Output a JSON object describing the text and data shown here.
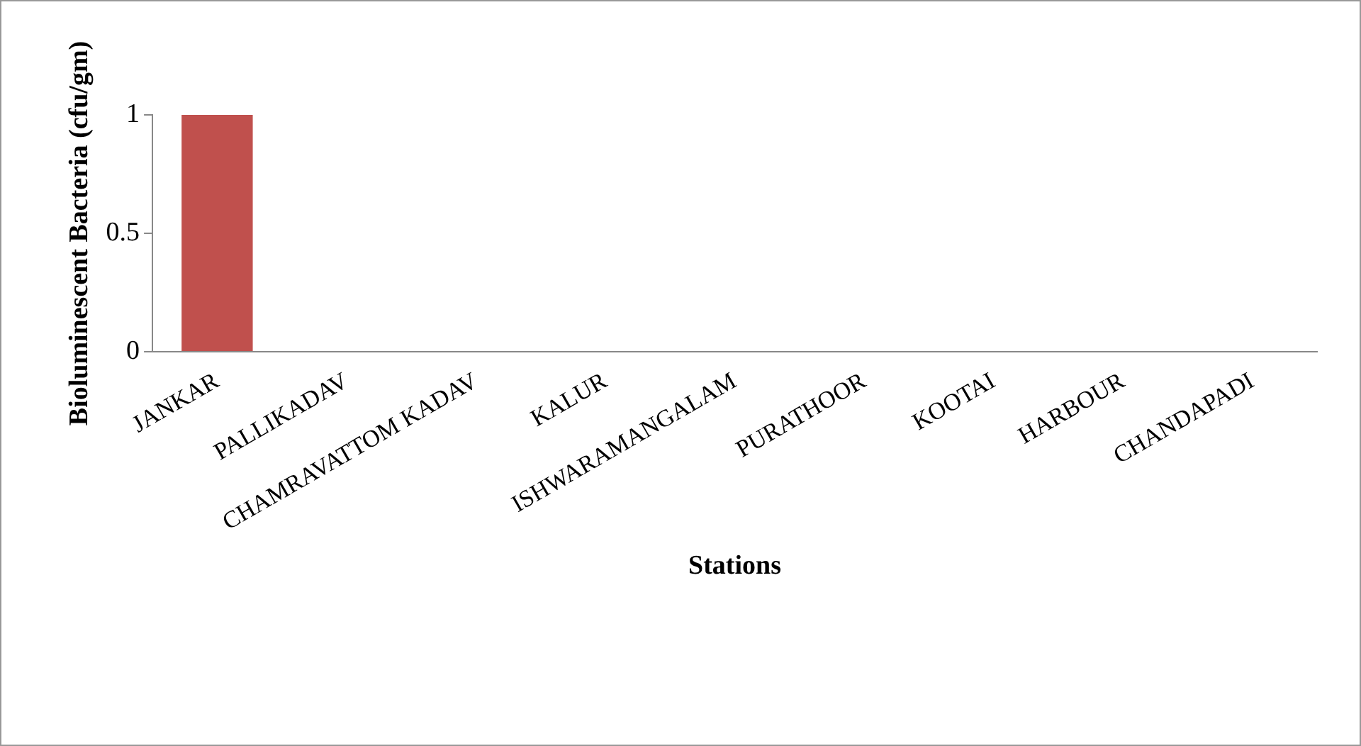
{
  "chart_data": {
    "type": "bar",
    "xlabel": "Stations",
    "ylabel": "Bioluminescent Bacteria (cfu/gm)",
    "categories": [
      "JANKAR",
      "PALLIKADAV",
      "CHAMRAVATTOM KADAV",
      "KALUR",
      "ISHWARAMANGALAM",
      "PURATHOOR",
      "KOOTAI",
      "HARBOUR",
      "CHANDAPADI"
    ],
    "values": [
      1,
      0,
      0,
      0,
      0,
      0,
      0,
      0,
      0
    ],
    "color": "#c0504d",
    "ylim": [
      0,
      1
    ],
    "yticks": [
      0,
      0.5,
      1
    ],
    "grid": false,
    "legend": false
  }
}
